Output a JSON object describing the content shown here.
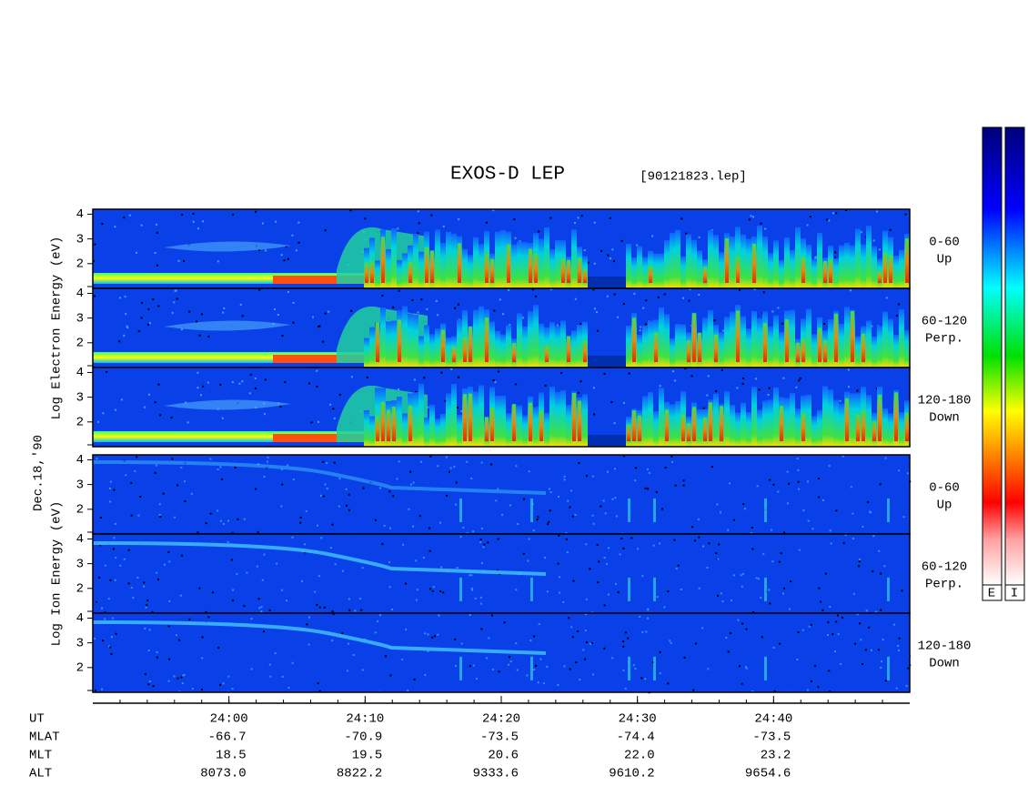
{
  "header": {
    "title": "EXOS-D LEP",
    "file": "[90121823.lep]"
  },
  "chart_data": {
    "type": "spectrogram",
    "date": "Dec.18,'90",
    "xlim": [
      1430,
      1490
    ],
    "xticks": [
      {
        "value": 1440,
        "label": "24:00"
      },
      {
        "value": 1450,
        "label": "24:10"
      },
      {
        "value": 1460,
        "label": "24:20"
      },
      {
        "value": 1470,
        "label": "24:30"
      },
      {
        "value": 1480,
        "label": "24:40"
      }
    ],
    "minor_xtick_step": 2,
    "ylim": [
      1,
      4.2
    ],
    "yticks": [
      2,
      3,
      4
    ],
    "groups": [
      {
        "species": "electron",
        "ylabel": "Log Electron Energy (eV)",
        "panels": [
          {
            "labels": [
              "0-60",
              "Up"
            ]
          },
          {
            "labels": [
              "60-120",
              "Perp."
            ]
          },
          {
            "labels": [
              "120-180",
              "Down"
            ]
          }
        ]
      },
      {
        "species": "ion",
        "ylabel": "Log Ion Energy (eV)",
        "panels": [
          {
            "labels": [
              "0-60",
              "Up"
            ]
          },
          {
            "labels": [
              "60-120",
              "Perp."
            ]
          },
          {
            "labels": [
              "120-180",
              "Down"
            ]
          }
        ]
      }
    ],
    "orbit": {
      "xlabel": "UT",
      "rows": [
        {
          "name": "MLAT",
          "values": [
            "-66.7",
            "-70.9",
            "-73.5",
            "-74.4",
            "-73.5"
          ]
        },
        {
          "name": "MLT",
          "values": [
            "18.5",
            "19.5",
            "20.6",
            "22.0",
            "23.2"
          ]
        },
        {
          "name": "ALT",
          "values": [
            "8073.0",
            "8822.2",
            "9333.6",
            "9610.2",
            "9654.6"
          ]
        }
      ]
    },
    "colorbars": [
      "E",
      "I"
    ]
  }
}
